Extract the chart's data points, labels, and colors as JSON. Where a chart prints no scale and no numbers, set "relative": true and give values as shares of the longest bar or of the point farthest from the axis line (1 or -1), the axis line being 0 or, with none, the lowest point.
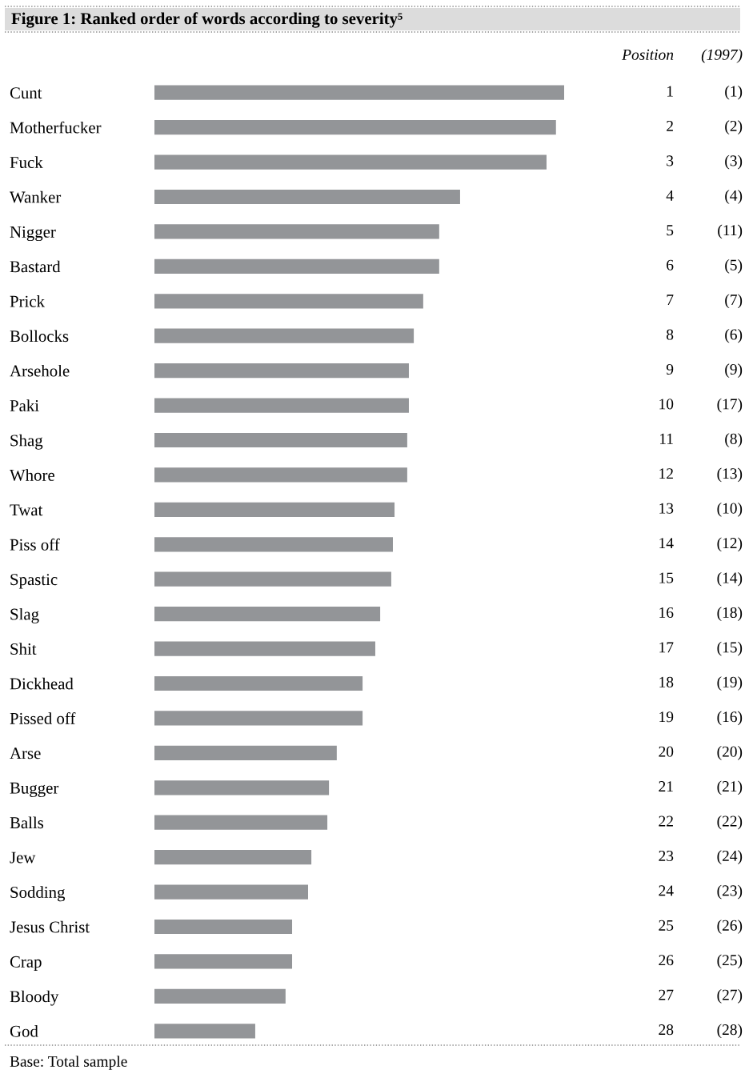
{
  "chart_data": {
    "type": "bar",
    "orientation": "horizontal",
    "relative": true,
    "title": "Figure 1: Ranked order of words according to severity⁵",
    "categories": [
      "Cunt",
      "Motherfucker",
      "Fuck",
      "Wanker",
      "Nigger",
      "Bastard",
      "Prick",
      "Bollocks",
      "Arsehole",
      "Paki",
      "Shag",
      "Whore",
      "Twat",
      "Piss off",
      "Spastic",
      "Slag",
      "Shit",
      "Dickhead",
      "Pissed off",
      "Arse",
      "Bugger",
      "Balls",
      "Jew",
      "Sodding",
      "Jesus Christ",
      "Crap",
      "Bloody",
      "God"
    ],
    "values": [
      1,
      0.98,
      0.957,
      0.746,
      0.695,
      0.695,
      0.656,
      0.633,
      0.621,
      0.621,
      0.617,
      0.617,
      0.586,
      0.582,
      0.578,
      0.551,
      0.539,
      0.508,
      0.508,
      0.445,
      0.426,
      0.422,
      0.383,
      0.375,
      0.336,
      0.336,
      0.32,
      0.246
    ],
    "color": "#939598",
    "grid": false,
    "legend": false,
    "annotations": [
      "Position",
      "(1997)",
      "Base: Total sample",
      "1",
      "(1)",
      "2",
      "(2)",
      "3",
      "(3)",
      "4",
      "(4)",
      "5",
      "(11)",
      "6",
      "(5)",
      "7",
      "(7)",
      "8",
      "(6)",
      "9",
      "(9)",
      "10",
      "(17)",
      "11",
      "(8)",
      "12",
      "(13)",
      "13",
      "(10)",
      "14",
      "(12)",
      "15",
      "(14)",
      "16",
      "(18)",
      "17",
      "(15)",
      "18",
      "(19)",
      "19",
      "(16)",
      "20",
      "(20)",
      "21",
      "(21)",
      "22",
      "(22)",
      "23",
      "(24)",
      "24",
      "(23)",
      "25",
      "(26)",
      "26",
      "(25)",
      "27",
      "(27)",
      "28",
      "(28)"
    ]
  }
}
